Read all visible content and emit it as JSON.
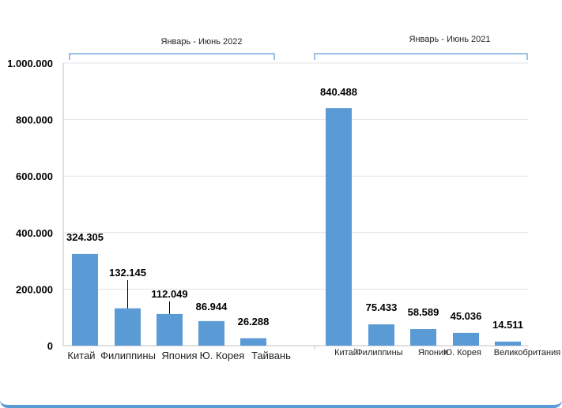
{
  "chart_data": {
    "type": "bar",
    "ylim": [
      0,
      1000000
    ],
    "yticks": [
      {
        "value": 0,
        "label": "0"
      },
      {
        "value": 200000,
        "label": "200.000"
      },
      {
        "value": 400000,
        "label": "400.000"
      },
      {
        "value": 600000,
        "label": "600.000"
      },
      {
        "value": 800000,
        "label": "800.000"
      },
      {
        "value": 1000000,
        "label": "1.000.000"
      }
    ],
    "grid": true,
    "bar_color": "#5b9bd5",
    "groups": [
      {
        "title": "Январь - Июнь 2022",
        "categories": [
          "Китай",
          "Филиппины",
          "Япония",
          "Ю. Корея",
          "Тайвань"
        ],
        "values": [
          324305,
          132145,
          112049,
          86944,
          26288
        ],
        "value_labels": [
          "324.305",
          "132.145",
          "112.049",
          "86.944",
          "26.288"
        ]
      },
      {
        "title": "Январь - Июнь 2021",
        "categories": [
          "Китай",
          "Филиппины",
          "Япония",
          "Ю. Корея",
          "Великобритания"
        ],
        "values": [
          840488,
          75433,
          58589,
          45036,
          14511
        ],
        "value_labels": [
          "840.488",
          "75.433",
          "58.589",
          "45.036",
          "14.511"
        ]
      }
    ]
  }
}
